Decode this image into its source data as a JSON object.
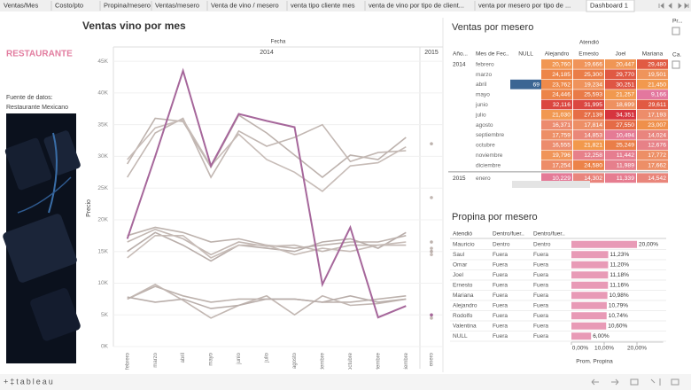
{
  "tabs": [
    "Ventas/Mes",
    "Costo/pto",
    "Propina/mesero",
    "Ventas/mesero",
    "Venta de vino / mesero",
    "venta tipo cliente mes",
    "venta de vino por tipo de client...",
    "venta por mesero por tipo de ...",
    "Dashboard 1"
  ],
  "sidebar": {
    "title": "RESTAURANTE",
    "source_label": "Fuente de datos:",
    "source": "Restaurante Mexicano"
  },
  "legend_stubs": [
    "Pr...",
    "Ca."
  ],
  "chart_data": [
    {
      "type": "line",
      "title": "Ventas vino por mes",
      "header": "Fecha",
      "panes": [
        "2014",
        "2015"
      ],
      "ylabel": "Precio",
      "categories": [
        "febrero",
        "marzo",
        "abril",
        "mayo",
        "junio",
        "julio",
        "agosto",
        "septiembre",
        "octubre",
        "noviembre",
        "diciembre",
        "enero"
      ],
      "ylim": [
        0,
        46
      ],
      "yticks": [
        {
          "value": 0,
          "label": "0K"
        },
        {
          "value": 5,
          "label": "5K"
        },
        {
          "value": 10,
          "label": "10K"
        },
        {
          "value": 15,
          "label": "15K"
        },
        {
          "value": 20,
          "label": "20K"
        },
        {
          "value": 25,
          "label": "25K"
        },
        {
          "value": 30,
          "label": "30K"
        },
        {
          "value": 35,
          "label": "35K"
        },
        {
          "value": 40,
          "label": "40K"
        },
        {
          "value": 45,
          "label": "45K"
        }
      ],
      "grid": true,
      "series": [
        {
          "color": "#bdb2ad",
          "values": [
            28.8,
            36,
            35.5,
            28.3,
            36.5,
            33.7,
            30.2,
            26.7,
            30.2,
            29.5,
            33,
            32
          ]
        },
        {
          "color": "#c2b7b2",
          "values": [
            26.7,
            33.7,
            36,
            26.7,
            34,
            31.6,
            33,
            35,
            29.2,
            30.6,
            30.9,
            23.5
          ]
        },
        {
          "color": "#c7bcb7",
          "values": [
            29.5,
            34.5,
            35.8,
            28.5,
            33.5,
            29.5,
            27.5,
            24.5,
            28.5,
            29,
            31.5,
            null
          ]
        },
        {
          "color": "#bdb2ad",
          "values": [
            17.5,
            18.8,
            18,
            16.5,
            17,
            16,
            15.5,
            16,
            16.5,
            16.5,
            17.5,
            16.5
          ]
        },
        {
          "color": "#c2b7b2",
          "values": [
            16.5,
            18.5,
            17,
            14.5,
            16.5,
            15.8,
            16,
            15,
            16,
            16,
            16,
            15.5
          ]
        },
        {
          "color": "#b9aeaa",
          "values": [
            15,
            18,
            16,
            13.5,
            16,
            15.5,
            15,
            16.5,
            17,
            15.5,
            18,
            15
          ]
        },
        {
          "color": "#c7bcb7",
          "values": [
            14,
            17.5,
            17.5,
            14,
            16,
            16,
            14.5,
            15.5,
            15,
            16,
            16.5,
            14.5
          ]
        },
        {
          "color": "#bdb2ad",
          "values": [
            7.5,
            9.5,
            8,
            7,
            7.5,
            7.5,
            7.5,
            7,
            7,
            7.5,
            8,
            5
          ]
        },
        {
          "color": "#c2b7b2",
          "values": [
            7.5,
            9.8,
            7.3,
            4.5,
            6.5,
            8,
            5,
            8,
            6.5,
            6.8,
            7.5,
            4.5
          ]
        },
        {
          "color": "#b9aeaa",
          "values": [
            7.8,
            7,
            7.5,
            6,
            6.5,
            7.5,
            7.5,
            7,
            8,
            7,
            7.5,
            null
          ]
        },
        {
          "color": "#a6679b",
          "values": [
            17,
            30,
            43.5,
            28.5,
            36.7,
            35.6,
            34.6,
            9.8,
            18.8,
            4.6,
            6.4,
            5
          ]
        }
      ]
    },
    {
      "type": "bar",
      "title": "Propina por mesero",
      "xlabel": "Prom. Propina",
      "color": "#e89ab6",
      "categories": [
        "Mauricio",
        "Saul",
        "Omar",
        "Joel",
        "Ernesto",
        "Mariana",
        "Alejandro",
        "Rodolfo",
        "Valentina",
        "NULL"
      ],
      "values": [
        20,
        11.23,
        11.2,
        11.18,
        11.16,
        10.98,
        10.79,
        10.74,
        10.6,
        6
      ],
      "value_labels": [
        "20,00%",
        "11,23%",
        "11,20%",
        "11,18%",
        "11,16%",
        "10,98%",
        "10,79%",
        "10,74%",
        "10,60%",
        "6,00%"
      ],
      "xlim": [
        0,
        28
      ],
      "xticks": [
        {
          "value": 0,
          "label": "0,00%"
        },
        {
          "value": 10,
          "label": "10,00%"
        },
        {
          "value": 20,
          "label": "20,00%"
        }
      ]
    }
  ],
  "propina_table": {
    "headers": [
      "Atendió",
      "Dentro/fuer..",
      "Dentro/fuer.."
    ],
    "rows": [
      [
        "Dentro",
        "Dentro"
      ],
      [
        "Fuera",
        "Fuera"
      ],
      [
        "Fuera",
        "Fuera"
      ],
      [
        "Fuera",
        "Fuera"
      ],
      [
        "Fuera",
        "Fuera"
      ],
      [
        "Fuera",
        "Fuera"
      ],
      [
        "Fuera",
        "Fuera"
      ],
      [
        "Fuera",
        "Fuera"
      ],
      [
        "Fuera",
        "Fuera"
      ],
      [
        "Fuera",
        "Fuera"
      ]
    ]
  },
  "ventas_table": {
    "title": "Ventas por mesero",
    "column_group": "Atendió",
    "headers": [
      "Año...",
      "Mes de Fec..",
      "NULL",
      "Alejandro",
      "Ernesto",
      "Joel",
      "Mariana"
    ],
    "rows": [
      [
        "2014",
        "febrero",
        null,
        "20,760",
        "19,666",
        "20,447",
        "29,480"
      ],
      [
        null,
        "marzo",
        null,
        "24,185",
        "25,300",
        "29,770",
        "19,501"
      ],
      [
        null,
        "abril",
        "69",
        "23,762",
        "19,234",
        "30,251",
        "21,450"
      ],
      [
        null,
        "mayo",
        null,
        "24,446",
        "25,593",
        "21,257",
        "9,166"
      ],
      [
        null,
        "junio",
        null,
        "32,116",
        "31,995",
        "18,699",
        "29,611"
      ],
      [
        null,
        "julio",
        null,
        "21,030",
        "27,139",
        "34,351",
        "17,193"
      ],
      [
        null,
        "agosto",
        null,
        "16,371",
        "17,814",
        "27,550",
        "23,007"
      ],
      [
        null,
        "septiembre",
        null,
        "17,759",
        "14,853",
        "10,494",
        "14,024"
      ],
      [
        null,
        "octubre",
        null,
        "16,555",
        "21,821",
        "25,249",
        "12,676"
      ],
      [
        null,
        "noviembre",
        null,
        "19,796",
        "12,258",
        "11,442",
        "17,772"
      ],
      [
        null,
        "diciembre",
        null,
        "17,254",
        "24,580",
        "11,989",
        "17,662"
      ],
      [
        "2015",
        "enero",
        null,
        "10,229",
        "14,302",
        "11,339",
        "14,542"
      ]
    ]
  },
  "footer": {
    "brand": "+‡tableau"
  }
}
